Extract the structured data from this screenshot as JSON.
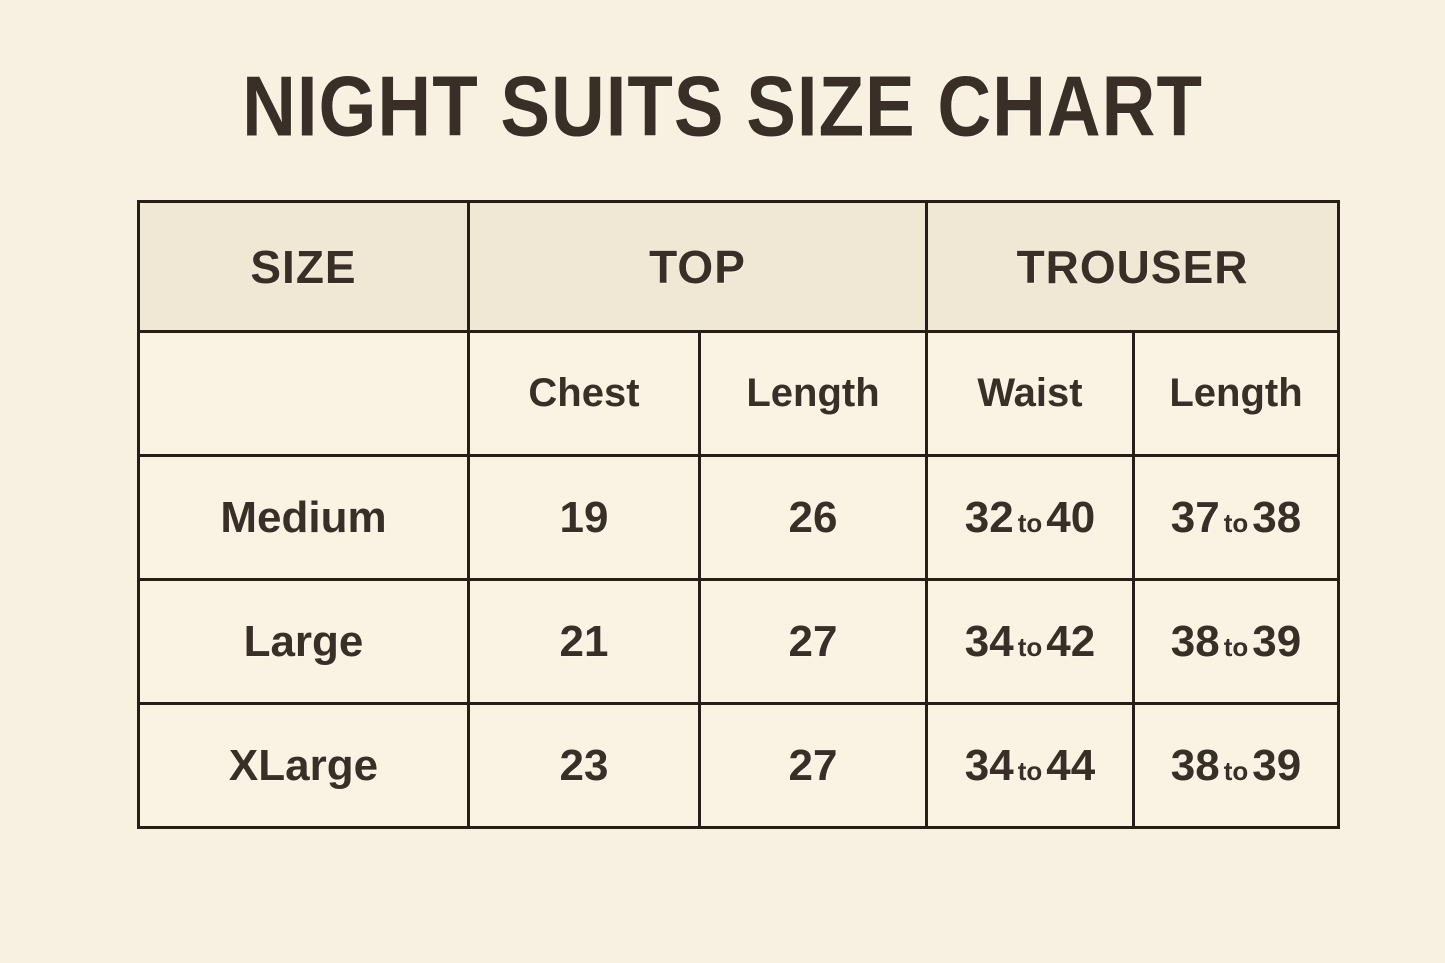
{
  "page": {
    "background_color": "#f8f0e1",
    "cell_background_color": "#faf3e3",
    "group_header_background_color": "#f0e8d4",
    "border_color": "#261e17",
    "text_color": "#3a2f26"
  },
  "title": "NIGHT SUITS SIZE CHART",
  "table": {
    "group_headers": {
      "size": "SIZE",
      "top": "TOP",
      "trouser": "TROUSER"
    },
    "sub_headers": {
      "chest": "Chest",
      "top_length": "Length",
      "waist": "Waist",
      "trouser_length": "Length"
    },
    "range_separator": "to",
    "rows": [
      {
        "size": "Medium",
        "chest": "19",
        "top_length": "26",
        "waist_low": "32",
        "waist_high": "40",
        "trouser_length_low": "37",
        "trouser_length_high": "38"
      },
      {
        "size": "Large",
        "chest": "21",
        "top_length": "27",
        "waist_low": "34",
        "waist_high": "42",
        "trouser_length_low": "38",
        "trouser_length_high": "39"
      },
      {
        "size": "XLarge",
        "chest": "23",
        "top_length": "27",
        "waist_low": "34",
        "waist_high": "44",
        "trouser_length_low": "38",
        "trouser_length_high": "39"
      }
    ]
  }
}
